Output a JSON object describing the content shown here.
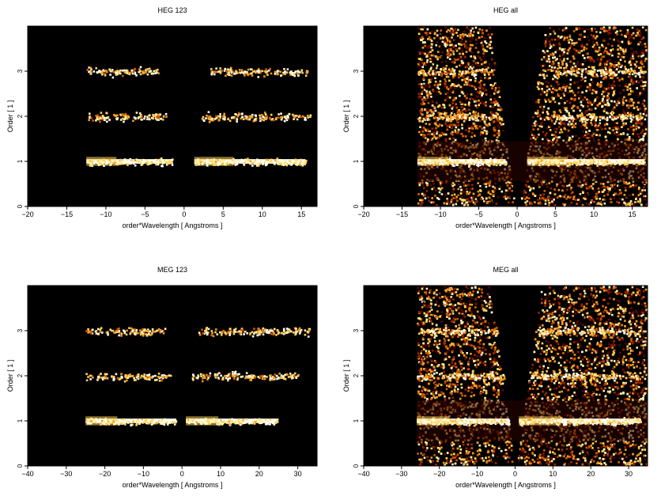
{
  "chart_data": [
    {
      "type": "heatmap",
      "title": "HEG 123",
      "xlabel": "order*Wavelength [ Angstroms ]",
      "ylabel": "Order [ 1 ]",
      "xlim": [
        -20,
        17
      ],
      "ylim": [
        0,
        4
      ],
      "xticks": [
        -20,
        -15,
        -10,
        -5,
        0,
        5,
        10,
        15
      ],
      "yticks": [
        0,
        1,
        2,
        3
      ],
      "colormap": "black-red-yellow-white",
      "bands": [
        {
          "order": 1,
          "x_ranges": [
            [
              -12.5,
              -1.5
            ],
            [
              1.3,
              15.5
            ]
          ],
          "intensity": "high"
        },
        {
          "order": 2,
          "x_ranges": [
            [
              -12.5,
              -2.3
            ],
            [
              2.2,
              16.2
            ]
          ],
          "intensity": "medium"
        },
        {
          "order": 3,
          "x_ranges": [
            [
              -12.5,
              -3.3
            ],
            [
              3.2,
              15.8
            ]
          ],
          "intensity": "medium"
        }
      ],
      "background": "none"
    },
    {
      "type": "heatmap",
      "title": "HEG all",
      "xlabel": "order*Wavelength [ Angstroms ]",
      "ylabel": "Order [ 1 ]",
      "xlim": [
        -20,
        17
      ],
      "ylim": [
        0,
        4
      ],
      "xticks": [
        -20,
        -15,
        -10,
        -5,
        0,
        5,
        10,
        15
      ],
      "yticks": [
        0,
        1,
        2,
        3
      ],
      "colormap": "black-red-yellow-white",
      "bands": [
        {
          "order": 1,
          "x_ranges": [
            [
              -13,
              -1.5
            ],
            [
              1.3,
              16.5
            ]
          ],
          "intensity": "high"
        },
        {
          "order": 2,
          "x_ranges": [
            [
              -13,
              -2.3
            ],
            [
              3.5,
              16.5
            ]
          ],
          "intensity": "medium"
        },
        {
          "order": 3,
          "x_ranges": [
            [
              -13,
              -3.3
            ],
            [
              4.5,
              16.5
            ]
          ],
          "intensity": "medium"
        }
      ],
      "data_region_x": [
        -13,
        17
      ],
      "background": "dense"
    },
    {
      "type": "heatmap",
      "title": "MEG 123",
      "xlabel": "order*Wavelength [ Angstroms ]",
      "ylabel": "Order [ 1 ]",
      "xlim": [
        -40,
        35
      ],
      "ylim": [
        0,
        4
      ],
      "xticks": [
        -40,
        -30,
        -20,
        -10,
        0,
        10,
        20,
        30
      ],
      "yticks": [
        0,
        1,
        2,
        3
      ],
      "colormap": "black-red-yellow-white",
      "bands": [
        {
          "order": 1,
          "x_ranges": [
            [
              -25,
              -1.5
            ],
            [
              1.0,
              25
            ]
          ],
          "intensity": "high"
        },
        {
          "order": 2,
          "x_ranges": [
            [
              -25,
              -3
            ],
            [
              2.5,
              30
            ]
          ],
          "intensity": "medium"
        },
        {
          "order": 3,
          "x_ranges": [
            [
              -25,
              -4.5
            ],
            [
              4,
              33
            ]
          ],
          "intensity": "medium"
        }
      ],
      "background": "none"
    },
    {
      "type": "heatmap",
      "title": "MEG all",
      "xlabel": "order*Wavelength [ Angstroms ]",
      "ylabel": "Order [ 1 ]",
      "xlim": [
        -40,
        35
      ],
      "ylim": [
        0,
        4
      ],
      "xticks": [
        -40,
        -30,
        -20,
        -10,
        0,
        10,
        20,
        30
      ],
      "yticks": [
        0,
        1,
        2,
        3
      ],
      "colormap": "black-red-yellow-white",
      "bands": [
        {
          "order": 1,
          "x_ranges": [
            [
              -26,
              -1.5
            ],
            [
              1.0,
              33
            ]
          ],
          "intensity": "high"
        },
        {
          "order": 2,
          "x_ranges": [
            [
              -26,
              -3
            ],
            [
              4,
              33
            ]
          ],
          "intensity": "medium"
        },
        {
          "order": 3,
          "x_ranges": [
            [
              -26,
              -4.5
            ],
            [
              6,
              33
            ]
          ],
          "intensity": "medium"
        }
      ],
      "data_region_x": [
        -26,
        35
      ],
      "background": "dense"
    }
  ]
}
